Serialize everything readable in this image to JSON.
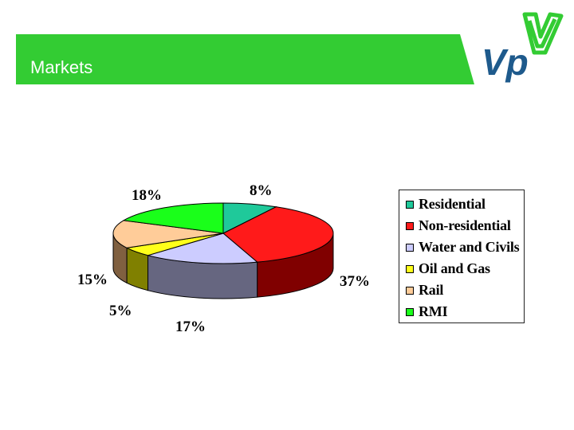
{
  "header": {
    "title": "Markets",
    "banner_color": "#33cc33",
    "logo_text": "Vp",
    "logo_color": "#1e5a8c",
    "logo_accent_color": "#33cc33"
  },
  "chart_data": {
    "type": "pie",
    "title": "",
    "labels": [
      "Residential",
      "Non-residential",
      "Water and Civils",
      "Oil and Gas",
      "Rail",
      "RMI"
    ],
    "values": [
      8,
      37,
      17,
      5,
      15,
      18
    ],
    "value_labels": [
      "8%",
      "37%",
      "17%",
      "5%",
      "15%",
      "18%"
    ],
    "colors": [
      "#1fc99a",
      "#ff1a1a",
      "#ccccff",
      "#ffff1a",
      "#ffcc99",
      "#1aff1a"
    ],
    "side_colors": [
      "#0e7a5c",
      "#800000",
      "#666680",
      "#808000",
      "#806040",
      "#0d800d"
    ],
    "legend": "right",
    "style": "3d"
  }
}
